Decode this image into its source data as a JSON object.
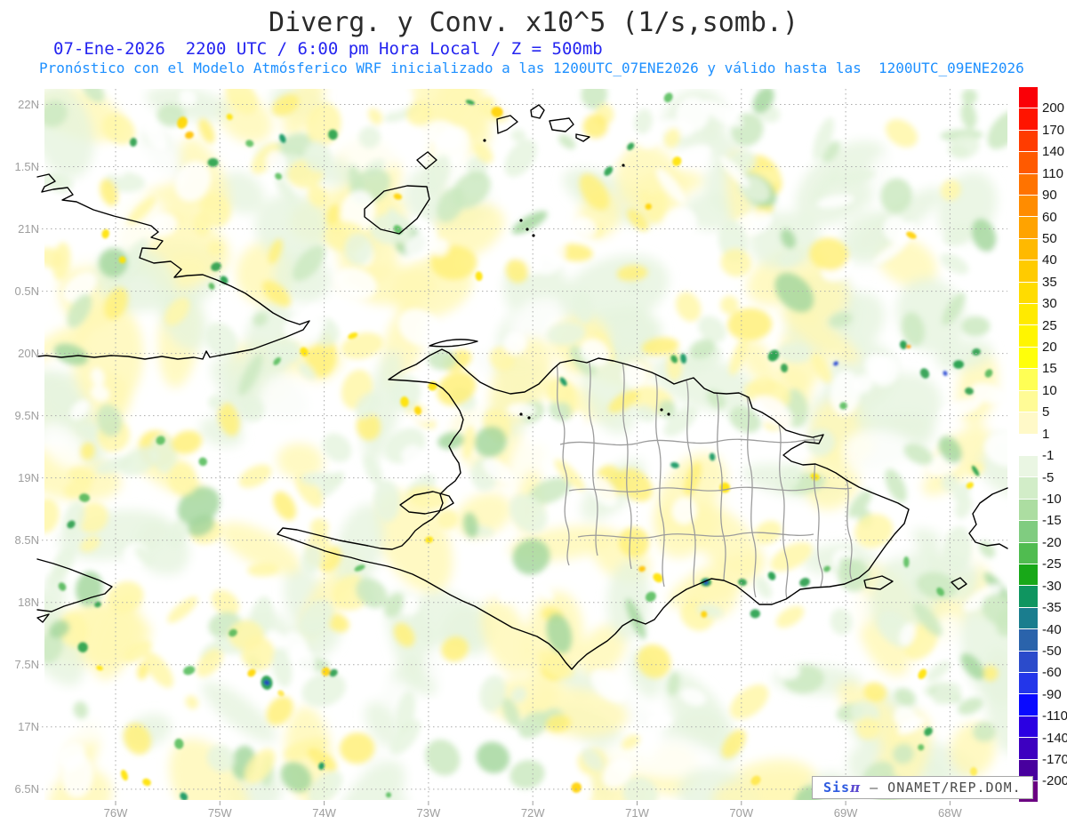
{
  "header": {
    "title": "Diverg. y Conv. x10^5 (1/s,somb.)",
    "subtitle1": "07-Ene-2026  2200 UTC / 6:00 pm Hora Local / Z = 500mb",
    "subtitle2": "Pronóstico con el Modelo Atmósferico WRF inicializado a las 1200UTC_07ENE2026 y válido hasta las  1200UTC_09ENE2026"
  },
  "colors": {
    "title": "#2b2b2b",
    "subtitle1": "#2424f0",
    "subtitle2": "#1e90ff",
    "axis_labels": "#9e9e9e",
    "grid": "#ababab",
    "coast": "#000000",
    "province_borders": "#9c9c9c",
    "field_positive_yellow": "#fff27d",
    "field_negative_green": "#cbe9c1"
  },
  "axes": {
    "lat_labels": [
      "22N",
      "1.5N",
      "21N",
      "0.5N",
      "20N",
      "9.5N",
      "19N",
      "8.5N",
      "18N",
      "7.5N",
      "17N",
      "6.5N"
    ],
    "lon_labels": [
      "76W",
      "75W",
      "74W",
      "73W",
      "72W",
      "71W",
      "70W",
      "69W",
      "68W"
    ]
  },
  "colorbar": {
    "levels": [
      "200",
      "170",
      "140",
      "110",
      "90",
      "60",
      "50",
      "40",
      "35",
      "30",
      "25",
      "20",
      "15",
      "10",
      "5",
      "1",
      "-1",
      "-5",
      "-10",
      "-15",
      "-20",
      "-25",
      "-30",
      "-35",
      "-40",
      "-50",
      "-60",
      "-90",
      "-110",
      "-140",
      "-170",
      "-200"
    ],
    "colors": [
      "#fa0007",
      "#ff1400",
      "#ff3c00",
      "#ff5a00",
      "#ff7300",
      "#ff8c00",
      "#ffa300",
      "#ffb900",
      "#ffcb00",
      "#ffdc00",
      "#ffea00",
      "#fff500",
      "#ffff0a",
      "#ffff55",
      "#fffb96",
      "#fff9c8",
      "#ffffff",
      "#eaf6e3",
      "#d2edc8",
      "#acdda1",
      "#80cc80",
      "#50bc50",
      "#18a818",
      "#0f9560",
      "#1a7d8e",
      "#2a63ab",
      "#2b4bcb",
      "#2336ea",
      "#0a0aff",
      "#2b00e2",
      "#3d00c0",
      "#48009e",
      "#6b0082"
    ]
  },
  "watermark": {
    "brand": "Sis",
    "pi": "π",
    "separator": "–",
    "org": "ONAMET/REP.DOM."
  }
}
